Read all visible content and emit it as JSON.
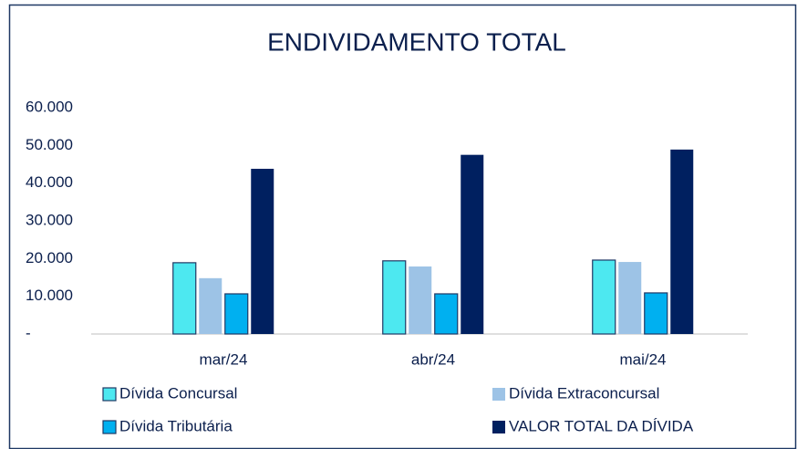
{
  "chart_data": {
    "type": "bar",
    "title": "ENDIVIDAMENTO TOTAL",
    "categories": [
      "mar/24",
      "abr/24",
      "mai/24"
    ],
    "series": [
      {
        "name": "Dívida Concursal",
        "color": "#4de8f0",
        "values": [
          18900,
          19400,
          19600
        ]
      },
      {
        "name": "Dívida Extraconcursal",
        "color": "#9dc3e6",
        "values": [
          14800,
          17900,
          19100
        ]
      },
      {
        "name": "Dívida Tributária",
        "color": "#00b0f0",
        "values": [
          10650,
          10650,
          10900
        ]
      },
      {
        "name": "VALOR TOTAL DA DÍVIDA",
        "color": "#002060",
        "values": [
          43800,
          47500,
          48900
        ]
      }
    ],
    "ylim": [
      0,
      60000
    ],
    "yticks": [
      {
        "value": 0,
        "label": "-"
      },
      {
        "value": 10000,
        "label": "10.000"
      },
      {
        "value": 20000,
        "label": "20.000"
      },
      {
        "value": 30000,
        "label": "30.000"
      },
      {
        "value": 40000,
        "label": "40.000"
      },
      {
        "value": 50000,
        "label": "50.000"
      },
      {
        "value": 60000,
        "label": "60.000"
      }
    ],
    "grid": false,
    "legend": "bottom"
  }
}
